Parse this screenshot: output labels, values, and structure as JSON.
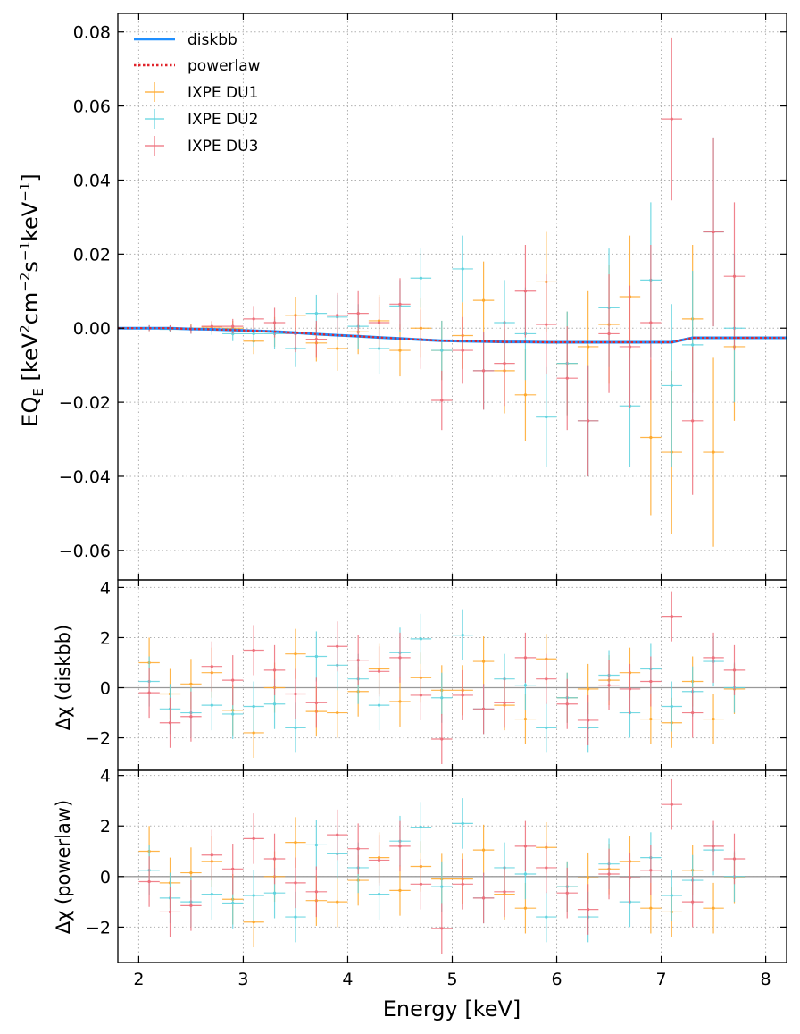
{
  "chart_data": {
    "type": "scatter",
    "xlabel": "Energy [keV]",
    "xlim": [
      1.8,
      8.2
    ],
    "xticks": [
      2,
      3,
      4,
      5,
      6,
      7,
      8
    ],
    "colors": {
      "diskbb": "#1f8fff",
      "powerlaw": "#e0242b",
      "DU1": "#ffa92b",
      "DU2": "#5fd3df",
      "DU3": "#ee6e7a",
      "zero": "#999999"
    },
    "legend": [
      "diskbb",
      "powerlaw",
      "IXPE DU1",
      "IXPE DU2",
      "IXPE DU3"
    ],
    "panels": [
      {
        "id": "top",
        "ylabel_main": "EQ",
        "ylabel_sub": "E",
        "ylabel_unit_open": "[keV",
        "ylabel_cm": "cm",
        "ylabel_s": "s",
        "ylabel_kev": "keV",
        "ylabel_close": "]",
        "exp_2": "2",
        "exp_m2": "−2",
        "exp_m1": "−1",
        "ylim": [
          -0.068,
          0.085
        ],
        "yticks": [
          0.08,
          0.06,
          0.04,
          0.02,
          0.0,
          -0.02,
          -0.04,
          -0.06
        ],
        "ytick_labels": [
          "0.08",
          "0.06",
          "0.04",
          "0.02",
          "0.00",
          "−0.02",
          "−0.04",
          "−0.06"
        ],
        "model_x": [
          1.8,
          2.1,
          2.3,
          2.5,
          2.7,
          2.9,
          3.1,
          3.3,
          3.5,
          3.7,
          3.9,
          4.1,
          4.3,
          4.5,
          4.7,
          4.9,
          5.1,
          5.3,
          5.5,
          5.7,
          5.9,
          6.1,
          6.3,
          6.5,
          6.7,
          6.9,
          7.1,
          7.3,
          7.5,
          7.7,
          8.2
        ],
        "model_y": [
          0.0,
          0.0,
          0.0,
          -0.0002,
          -0.0003,
          -0.0005,
          -0.0007,
          -0.0009,
          -0.0012,
          -0.0016,
          -0.0019,
          -0.0022,
          -0.0025,
          -0.0028,
          -0.0031,
          -0.0034,
          -0.0035,
          -0.0036,
          -0.0037,
          -0.0037,
          -0.0038,
          -0.0038,
          -0.0038,
          -0.0038,
          -0.0038,
          -0.0038,
          -0.0038,
          -0.0026,
          -0.0026,
          -0.0026,
          -0.0026
        ],
        "series": [
          {
            "name": "IXPE DU1",
            "x": [
              2.1,
              2.3,
              2.5,
              2.7,
              2.9,
              3.1,
              3.3,
              3.5,
              3.7,
              3.9,
              4.1,
              4.3,
              4.5,
              4.7,
              4.9,
              5.1,
              5.3,
              5.5,
              5.7,
              5.9,
              6.1,
              6.3,
              6.5,
              6.7,
              6.9,
              7.1,
              7.3,
              7.5,
              7.7
            ],
            "y": [
              0.0,
              -0.0001,
              0.0,
              0.0003,
              0.0,
              -0.0035,
              -0.001,
              0.0035,
              -0.004,
              -0.0055,
              -0.001,
              0.002,
              -0.006,
              0.0,
              -0.006,
              -0.002,
              0.0075,
              -0.0115,
              -0.018,
              0.0125,
              -0.0095,
              -0.005,
              0.001,
              0.0085,
              -0.0295,
              -0.0335,
              0.0025,
              -0.0335,
              -0.005
            ],
            "err": [
              0.0008,
              0.0008,
              0.0012,
              0.0015,
              0.002,
              0.0035,
              0.004,
              0.005,
              0.005,
              0.006,
              0.006,
              0.007,
              0.007,
              0.008,
              0.008,
              0.009,
              0.0105,
              0.0115,
              0.0125,
              0.0135,
              0.014,
              0.015,
              0.016,
              0.0165,
              0.021,
              0.022,
              0.02,
              0.0255,
              0.02
            ]
          },
          {
            "name": "IXPE DU2",
            "x": [
              2.1,
              2.3,
              2.5,
              2.7,
              2.9,
              3.1,
              3.3,
              3.5,
              3.7,
              3.9,
              4.1,
              4.3,
              4.5,
              4.7,
              4.9,
              5.1,
              5.3,
              5.5,
              5.7,
              5.9,
              6.1,
              6.3,
              6.5,
              6.7,
              6.9,
              7.1,
              7.3,
              7.5,
              7.7
            ],
            "y": [
              0.0,
              -0.0003,
              -0.0003,
              -0.0003,
              -0.0015,
              -0.0015,
              -0.0015,
              -0.0055,
              0.004,
              0.003,
              0.0005,
              -0.0055,
              0.006,
              0.0135,
              -0.006,
              0.016,
              -0.0115,
              0.0015,
              -0.0015,
              -0.024,
              -0.0095,
              -0.025,
              0.0055,
              -0.021,
              0.013,
              -0.0155,
              -0.0045,
              0.026,
              0.0
            ],
            "err": [
              0.0008,
              0.0008,
              0.0012,
              0.0015,
              0.002,
              0.0035,
              0.004,
              0.005,
              0.005,
              0.006,
              0.006,
              0.007,
              0.007,
              0.008,
              0.008,
              0.009,
              0.0105,
              0.0115,
              0.0125,
              0.0135,
              0.014,
              0.015,
              0.016,
              0.0165,
              0.021,
              0.022,
              0.02,
              0.0255,
              0.02
            ]
          },
          {
            "name": "IXPE DU3",
            "x": [
              2.1,
              2.3,
              2.5,
              2.7,
              2.9,
              3.1,
              3.3,
              3.5,
              3.7,
              3.9,
              4.1,
              4.3,
              4.5,
              4.7,
              4.9,
              5.1,
              5.3,
              5.5,
              5.7,
              5.9,
              6.1,
              6.3,
              6.5,
              6.7,
              6.9,
              7.1,
              7.3,
              7.5,
              7.7
            ],
            "y": [
              0.0,
              0.0,
              -0.0003,
              0.0005,
              0.0005,
              0.0025,
              0.0015,
              -0.0015,
              -0.003,
              0.0035,
              0.004,
              0.0015,
              0.0065,
              -0.003,
              -0.0195,
              -0.006,
              -0.0115,
              -0.0095,
              0.01,
              0.001,
              -0.0135,
              -0.025,
              -0.0015,
              -0.005,
              0.0015,
              0.0565,
              -0.025,
              0.026,
              0.014
            ],
            "err": [
              0.0008,
              0.0008,
              0.0012,
              0.0015,
              0.002,
              0.0035,
              0.004,
              0.005,
              0.005,
              0.006,
              0.006,
              0.007,
              0.007,
              0.008,
              0.008,
              0.009,
              0.0105,
              0.0115,
              0.0125,
              0.0135,
              0.014,
              0.015,
              0.016,
              0.0165,
              0.021,
              0.022,
              0.02,
              0.0255,
              0.02
            ]
          }
        ]
      },
      {
        "id": "mid",
        "ylabel": "Δχ (diskbb)",
        "ylim": [
          -3.3,
          4.3
        ],
        "yticks": [
          4,
          2,
          0,
          -2
        ],
        "ytick_labels": [
          "4",
          "2",
          "0",
          "−2"
        ],
        "series": [
          {
            "name": "IXPE DU1",
            "x": [
              2.1,
              2.3,
              2.5,
              2.7,
              2.9,
              3.1,
              3.3,
              3.5,
              3.7,
              3.9,
              4.1,
              4.3,
              4.5,
              4.7,
              4.9,
              5.1,
              5.3,
              5.5,
              5.7,
              5.9,
              6.1,
              6.3,
              6.5,
              6.7,
              6.9,
              7.1,
              7.3,
              7.5,
              7.7
            ],
            "y": [
              1.0,
              -0.25,
              0.15,
              0.6,
              -0.9,
              -1.8,
              0.0,
              1.35,
              -0.95,
              -1.0,
              -0.15,
              0.75,
              -0.55,
              0.4,
              -0.1,
              -0.1,
              1.05,
              -0.7,
              -1.25,
              1.15,
              -0.4,
              -0.05,
              0.3,
              0.6,
              -1.25,
              -1.4,
              0.25,
              -1.25,
              -0.05
            ]
          },
          {
            "name": "IXPE DU2",
            "x": [
              2.1,
              2.3,
              2.5,
              2.7,
              2.9,
              3.1,
              3.3,
              3.5,
              3.7,
              3.9,
              4.1,
              4.3,
              4.5,
              4.7,
              4.9,
              5.1,
              5.3,
              5.5,
              5.7,
              5.9,
              6.1,
              6.3,
              6.5,
              6.7,
              6.9,
              7.1,
              7.3,
              7.5,
              7.7
            ],
            "y": [
              0.25,
              -0.85,
              -1.0,
              -0.7,
              -1.05,
              -0.75,
              -0.65,
              -1.6,
              1.25,
              0.9,
              0.35,
              -0.7,
              1.4,
              1.95,
              -0.4,
              2.1,
              -0.85,
              0.35,
              0.1,
              -1.6,
              -0.4,
              -1.6,
              0.5,
              -1.0,
              0.75,
              -0.75,
              -0.15,
              1.05,
              0.0
            ]
          },
          {
            "name": "IXPE DU3",
            "x": [
              2.1,
              2.3,
              2.5,
              2.7,
              2.9,
              3.1,
              3.3,
              3.5,
              3.7,
              3.9,
              4.1,
              4.3,
              4.5,
              4.7,
              4.9,
              5.1,
              5.3,
              5.5,
              5.7,
              5.9,
              6.1,
              6.3,
              6.5,
              6.7,
              6.9,
              7.1,
              7.3,
              7.5,
              7.7
            ],
            "y": [
              -0.2,
              -1.4,
              -1.15,
              0.85,
              0.3,
              1.5,
              0.7,
              -0.25,
              -0.6,
              1.65,
              1.1,
              0.65,
              1.2,
              -0.3,
              -2.05,
              -0.3,
              -0.85,
              -0.6,
              1.2,
              0.35,
              -0.65,
              -1.3,
              0.1,
              -0.05,
              0.25,
              2.85,
              -1.0,
              1.2,
              0.7
            ]
          }
        ]
      },
      {
        "id": "bot",
        "ylabel": "Δχ (powerlaw)",
        "ylim": [
          -3.4,
          4.2
        ],
        "yticks": [
          4,
          2,
          0,
          -2
        ],
        "ytick_labels": [
          "4",
          "2",
          "0",
          "−2"
        ],
        "series": [
          {
            "name": "IXPE DU1",
            "x": [
              2.1,
              2.3,
              2.5,
              2.7,
              2.9,
              3.1,
              3.3,
              3.5,
              3.7,
              3.9,
              4.1,
              4.3,
              4.5,
              4.7,
              4.9,
              5.1,
              5.3,
              5.5,
              5.7,
              5.9,
              6.1,
              6.3,
              6.5,
              6.7,
              6.9,
              7.1,
              7.3,
              7.5,
              7.7
            ],
            "y": [
              1.0,
              -0.25,
              0.15,
              0.6,
              -0.9,
              -1.8,
              0.0,
              1.35,
              -0.95,
              -1.0,
              -0.15,
              0.75,
              -0.55,
              0.4,
              -0.1,
              -0.1,
              1.05,
              -0.7,
              -1.25,
              1.15,
              -0.4,
              -0.05,
              0.3,
              0.6,
              -1.25,
              -1.4,
              0.25,
              -1.25,
              -0.05
            ]
          },
          {
            "name": "IXPE DU2",
            "x": [
              2.1,
              2.3,
              2.5,
              2.7,
              2.9,
              3.1,
              3.3,
              3.5,
              3.7,
              3.9,
              4.1,
              4.3,
              4.5,
              4.7,
              4.9,
              5.1,
              5.3,
              5.5,
              5.7,
              5.9,
              6.1,
              6.3,
              6.5,
              6.7,
              6.9,
              7.1,
              7.3,
              7.5,
              7.7
            ],
            "y": [
              0.25,
              -0.85,
              -1.0,
              -0.7,
              -1.05,
              -0.75,
              -0.65,
              -1.6,
              1.25,
              0.9,
              0.35,
              -0.7,
              1.4,
              1.95,
              -0.4,
              2.1,
              -0.85,
              0.35,
              0.1,
              -1.6,
              -0.4,
              -1.6,
              0.5,
              -1.0,
              0.75,
              -0.75,
              -0.15,
              1.05,
              0.0
            ]
          },
          {
            "name": "IXPE DU3",
            "x": [
              2.1,
              2.3,
              2.5,
              2.7,
              2.9,
              3.1,
              3.3,
              3.5,
              3.7,
              3.9,
              4.1,
              4.3,
              4.5,
              4.7,
              4.9,
              5.1,
              5.3,
              5.5,
              5.7,
              5.9,
              6.1,
              6.3,
              6.5,
              6.7,
              6.9,
              7.1,
              7.3,
              7.5,
              7.7
            ],
            "y": [
              -0.2,
              -1.4,
              -1.15,
              0.85,
              0.3,
              1.5,
              0.7,
              -0.25,
              -0.6,
              1.65,
              1.1,
              0.65,
              1.2,
              -0.3,
              -2.05,
              -0.3,
              -0.85,
              -0.6,
              1.2,
              0.35,
              -0.65,
              -1.3,
              0.1,
              -0.05,
              0.25,
              2.85,
              -1.0,
              1.2,
              0.7
            ]
          }
        ]
      }
    ]
  }
}
